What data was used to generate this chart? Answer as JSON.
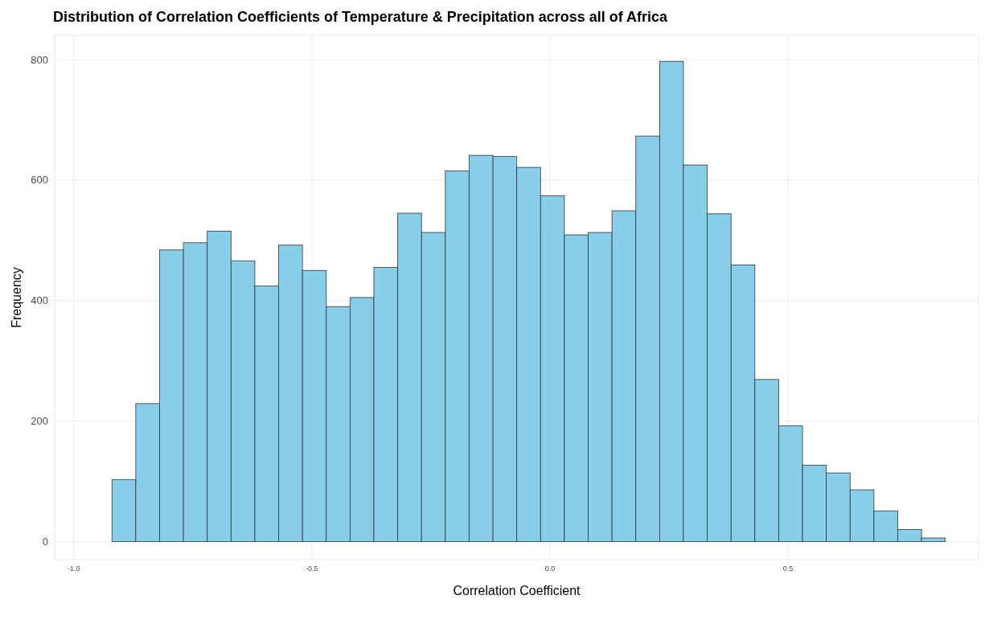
{
  "chart_data": {
    "type": "histogram",
    "title": "Distribution of Correlation Coefficients of Temperature & Precipitation across all of Africa",
    "xlabel": "Correlation Coefficient",
    "ylabel": "Frequency",
    "bins": [
      -0.92,
      -0.87,
      -0.82,
      -0.77,
      -0.72,
      -0.67,
      -0.62,
      -0.57,
      -0.52,
      -0.47,
      -0.42,
      -0.37,
      -0.32,
      -0.27,
      -0.22,
      -0.17,
      -0.12,
      -0.07,
      -0.02,
      0.03,
      0.08,
      0.13,
      0.18,
      0.23,
      0.28,
      0.33,
      0.38,
      0.43,
      0.48,
      0.53,
      0.58,
      0.63,
      0.68,
      0.73,
      0.78,
      0.83
    ],
    "values": [
      103,
      229,
      484,
      496,
      515,
      466,
      424,
      492,
      450,
      390,
      405,
      455,
      545,
      513,
      615,
      641,
      639,
      621,
      574,
      509,
      513,
      549,
      673,
      797,
      625,
      544,
      459,
      269,
      192,
      127,
      114,
      86,
      51,
      20,
      6
    ],
    "color": "#87ceeb",
    "xlim": [
      -1.04,
      0.9
    ],
    "xticks": [
      {
        "value": -1,
        "label": "-1.0"
      },
      {
        "value": -0.5,
        "label": "-0.5"
      },
      {
        "value": 0,
        "label": "0.0"
      },
      {
        "value": 0.5,
        "label": "0.5"
      }
    ],
    "ylim": [
      -30,
      840
    ],
    "yticks": [
      0,
      200,
      400,
      600,
      800
    ],
    "grid": true
  }
}
